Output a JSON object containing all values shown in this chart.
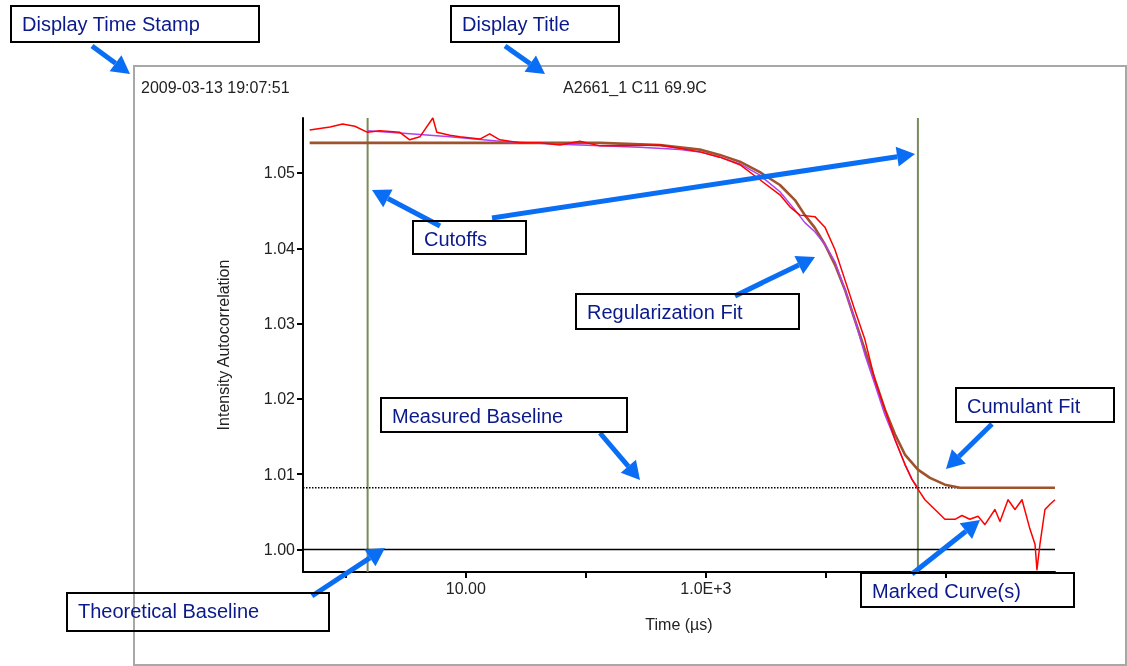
{
  "chart_data": {
    "type": "line",
    "title": "A2661_1 C11 69.9C",
    "subtitle": "2009-03-13 19:07:51",
    "xlabel": "Time (µs)",
    "ylabel": "Intensity Autocorrelation",
    "log": "x",
    "marker": "none",
    "xlim": [
      0.44,
      810000
    ],
    "xticks": [
      {
        "value": 1,
        "label": null
      },
      {
        "value": 10,
        "label": "10.00"
      },
      {
        "value": 100,
        "label": null
      },
      {
        "value": 1000,
        "label": "1.0E+3"
      },
      {
        "value": 10000,
        "label": null
      },
      {
        "value": 100000,
        "label": null
      }
    ],
    "ylim": [
      0.997,
      1.0573
    ],
    "yticks": [
      {
        "value": 1,
        "label": "1.00"
      },
      {
        "value": 1.01,
        "label": "1.01"
      },
      {
        "value": 1.02,
        "label": "1.02"
      },
      {
        "value": 1.03,
        "label": "1.03"
      },
      {
        "value": 1.04,
        "label": "1.04"
      },
      {
        "value": 1.05,
        "label": "1.05"
      }
    ],
    "series": [
      {
        "color": "#a0522d",
        "x": [
          0.5,
          131,
          414,
          891,
          1308,
          1920,
          2818,
          4140,
          5520,
          6680,
          8090,
          9810,
          11900,
          14400,
          17400,
          21100,
          25600,
          31000,
          37600,
          45500,
          58400,
          73600,
          98100,
          131000,
          809000
        ],
        "values": [
          1.054,
          1.054,
          1.0537,
          1.0531,
          1.0524,
          1.0515,
          1.0501,
          1.0484,
          1.0464,
          1.0444,
          1.0427,
          1.0405,
          1.0378,
          1.0345,
          1.0305,
          1.0265,
          1.0225,
          1.0186,
          1.0153,
          1.0126,
          1.0106,
          1.0095,
          1.0086,
          1.0082,
          1.0082
        ]
      },
      {
        "color": "#b040f0",
        "x": [
          1.52,
          2.82,
          7.36,
          19.2,
          60.7,
          131,
          282,
          607,
          891,
          1308,
          1920,
          2818,
          4140,
          5520,
          6680,
          8090,
          9810,
          11900,
          14400,
          17400,
          21100,
          25600,
          31000,
          37600,
          45500,
          52100,
          58400
        ],
        "values": [
          1.0556,
          1.0553,
          1.0548,
          1.0542,
          1.0538,
          1.0536,
          1.0534,
          1.0531,
          1.0528,
          1.0521,
          1.0512,
          1.0497,
          1.0475,
          1.0451,
          1.0434,
          1.0422,
          1.0405,
          1.0382,
          1.0345,
          1.0305,
          1.0259,
          1.0219,
          1.0179,
          1.0146,
          1.0113,
          1.0093,
          1.0082
        ]
      },
      {
        "color": "#ff0000",
        "x": [
          0.5,
          0.74,
          0.94,
          1.19,
          1.52,
          1.92,
          2.82,
          3.41,
          4.14,
          5.31,
          5.73,
          7.36,
          8.91,
          13.1,
          15.8,
          19.2,
          28.2,
          41.4,
          60.7,
          89.1,
          131,
          192,
          414,
          891,
          1308,
          1920,
          2818,
          4140,
          5012,
          6070,
          8090,
          9810,
          11900,
          14400,
          17400,
          21100,
          25600,
          31000,
          37600,
          45500,
          52100,
          58400,
          66800,
          80900,
          98100,
          119000,
          136000,
          158000,
          185000,
          211000,
          256000,
          282000,
          329000,
          376000,
          430000,
          501000,
          552000,
          573000,
          607000,
          668000,
          736000,
          809000
        ],
        "values": [
          1.0557,
          1.0561,
          1.0565,
          1.0562,
          1.0554,
          1.0556,
          1.0554,
          1.0544,
          1.0548,
          1.0573,
          1.0554,
          1.055,
          1.0548,
          1.0545,
          1.0552,
          1.0544,
          1.054,
          1.054,
          1.0537,
          1.0542,
          1.0536,
          1.0536,
          1.0537,
          1.0528,
          1.0521,
          1.0511,
          1.0491,
          1.0471,
          1.0455,
          1.0444,
          1.0442,
          1.0428,
          1.0398,
          1.0358,
          1.0318,
          1.0279,
          1.0225,
          1.0186,
          1.0146,
          1.0113,
          1.0093,
          1.008,
          1.0066,
          1.0053,
          1.004,
          1.004,
          1.0045,
          1.004,
          1.0044,
          1.0033,
          1.0053,
          1.0037,
          1.0066,
          1.0053,
          1.0066,
          1.0027,
          1.0007,
          0.9973,
          1.0007,
          1.0053,
          1.006,
          1.0066
        ]
      }
    ],
    "ref_lines": [
      {
        "axis": "x",
        "value": 1.52,
        "color": "#7a8a5a"
      },
      {
        "axis": "x",
        "value": 58400,
        "color": "#7a8a5a"
      },
      {
        "axis": "y",
        "value": 1.0082,
        "color": "#000000",
        "line_style": "dotted"
      },
      {
        "axis": "y",
        "value": 1,
        "color": "#000000",
        "line_style": "solid"
      }
    ],
    "annotations": [
      "Display Time Stamp",
      "Display Title",
      "Cutoffs",
      "Regularization Fit",
      "Measured Baseline",
      "Cumulant Fit",
      "Theoretical Baseline",
      "Marked Curve(s)"
    ]
  }
}
